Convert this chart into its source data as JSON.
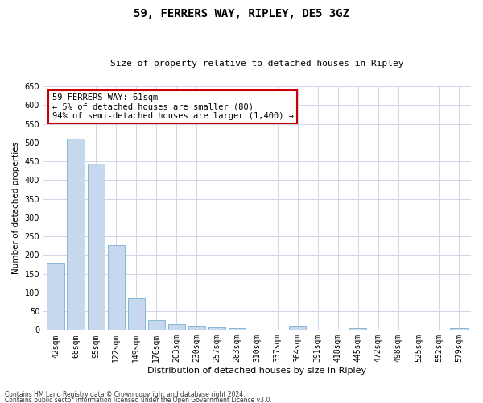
{
  "title": "59, FERRERS WAY, RIPLEY, DE5 3GZ",
  "subtitle": "Size of property relative to detached houses in Ripley",
  "xlabel": "Distribution of detached houses by size in Ripley",
  "ylabel": "Number of detached properties",
  "categories": [
    "42sqm",
    "68sqm",
    "95sqm",
    "122sqm",
    "149sqm",
    "176sqm",
    "203sqm",
    "230sqm",
    "257sqm",
    "283sqm",
    "310sqm",
    "337sqm",
    "364sqm",
    "391sqm",
    "418sqm",
    "445sqm",
    "472sqm",
    "498sqm",
    "525sqm",
    "552sqm",
    "579sqm"
  ],
  "values": [
    180,
    510,
    443,
    226,
    84,
    27,
    15,
    9,
    7,
    5,
    0,
    0,
    9,
    0,
    0,
    5,
    0,
    0,
    0,
    0,
    5
  ],
  "bar_color": "#c5d8ed",
  "bar_edge_color": "#7bafd4",
  "annotation_text": "59 FERRERS WAY: 61sqm\n← 5% of detached houses are smaller (80)\n94% of semi-detached houses are larger (1,400) →",
  "annotation_box_color": "#ffffff",
  "annotation_box_edge_color": "#cc0000",
  "ylim": [
    0,
    650
  ],
  "yticks": [
    0,
    50,
    100,
    150,
    200,
    250,
    300,
    350,
    400,
    450,
    500,
    550,
    600,
    650
  ],
  "footer_line1": "Contains HM Land Registry data © Crown copyright and database right 2024.",
  "footer_line2": "Contains public sector information licensed under the Open Government Licence v3.0.",
  "bg_color": "#ffffff",
  "grid_color": "#d0d8e8",
  "title_fontsize": 10,
  "subtitle_fontsize": 8,
  "xlabel_fontsize": 8,
  "ylabel_fontsize": 7.5,
  "tick_fontsize": 7,
  "annotation_fontsize": 7.5,
  "footer_fontsize": 5.5
}
